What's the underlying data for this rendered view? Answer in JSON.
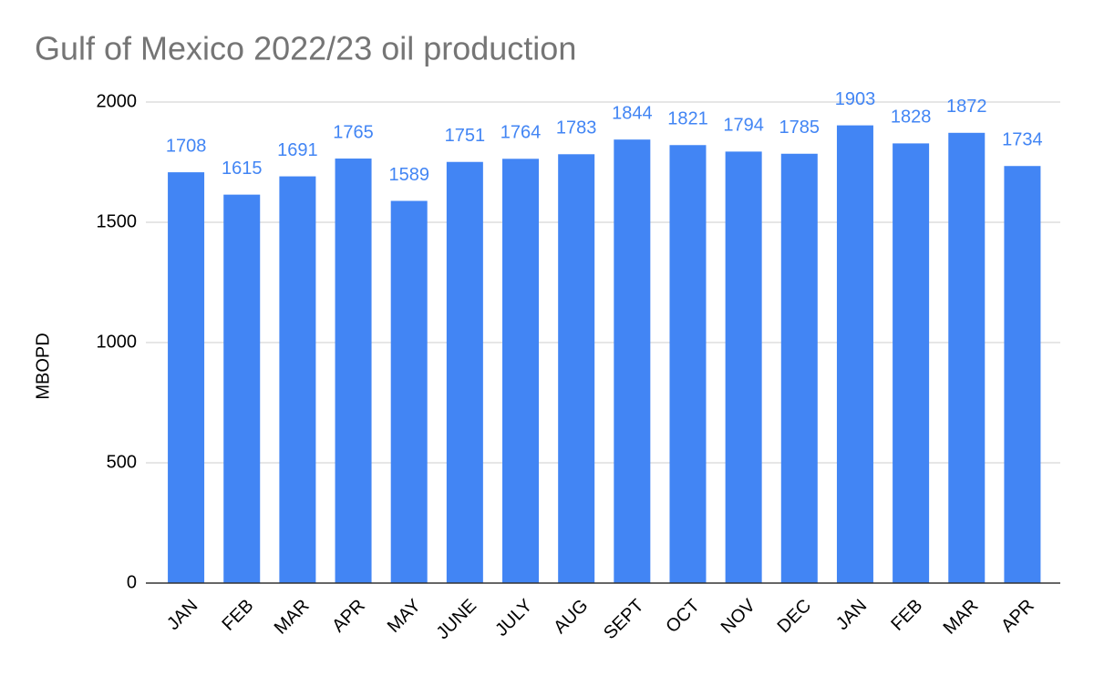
{
  "chart_data": {
    "type": "bar",
    "title": "Gulf of Mexico 2022/23 oil production",
    "y_label": "MBOPD",
    "categories": [
      "JAN",
      "FEB",
      "MAR",
      "APR",
      "MAY",
      "JUNE",
      "JULY",
      "AUG",
      "SEPT",
      "OCT",
      "NOV",
      "DEC",
      "JAN",
      "FEB",
      "MAR",
      "APR"
    ],
    "values": [
      1708,
      1615,
      1691,
      1765,
      1589,
      1751,
      1764,
      1783,
      1844,
      1821,
      1794,
      1785,
      1903,
      1828,
      1872,
      1734
    ],
    "color": "#4285f4",
    "ylim": [
      0,
      2000
    ],
    "yticks": [
      0,
      500,
      1000,
      1500,
      2000
    ],
    "grid": true
  }
}
